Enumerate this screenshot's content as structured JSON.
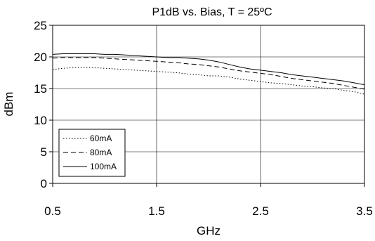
{
  "chart_data": {
    "type": "line",
    "title": "P1dB vs. Bias, T = 25ºC",
    "xlabel": "GHz",
    "ylabel": "dBm",
    "xlim": [
      0.5,
      3.5
    ],
    "ylim": [
      0,
      25
    ],
    "xticks": [
      0.5,
      1.5,
      2.5,
      3.5
    ],
    "yticks": [
      0,
      5,
      10,
      15,
      20,
      25
    ],
    "x_tick_labels": [
      "0.5",
      "1.5",
      "2.5",
      "3.5"
    ],
    "y_tick_labels": [
      "0",
      "5",
      "10",
      "15",
      "20",
      "25"
    ],
    "grid": true,
    "legend_position": "bottom-left",
    "series": [
      {
        "name": "60mA",
        "line_style": "dotted",
        "color": "#000000",
        "x": [
          0.5,
          0.6,
          0.7,
          0.8,
          0.9,
          1.0,
          1.1,
          1.2,
          1.3,
          1.4,
          1.5,
          1.6,
          1.7,
          1.8,
          1.9,
          2.0,
          2.1,
          2.2,
          2.3,
          2.4,
          2.5,
          2.6,
          2.7,
          2.8,
          2.9,
          3.0,
          3.1,
          3.2,
          3.3,
          3.4,
          3.5
        ],
        "y": [
          18.0,
          18.2,
          18.3,
          18.3,
          18.3,
          18.2,
          18.1,
          18.0,
          17.9,
          17.8,
          17.7,
          17.6,
          17.5,
          17.3,
          17.2,
          17.0,
          17.0,
          16.8,
          16.5,
          16.3,
          16.1,
          15.9,
          15.8,
          15.6,
          15.4,
          15.3,
          15.1,
          15.0,
          14.7,
          14.5,
          14.1
        ]
      },
      {
        "name": "80mA",
        "line_style": "dashed",
        "color": "#000000",
        "x": [
          0.5,
          0.6,
          0.7,
          0.8,
          0.9,
          1.0,
          1.1,
          1.2,
          1.3,
          1.4,
          1.5,
          1.6,
          1.7,
          1.8,
          1.9,
          2.0,
          2.1,
          2.2,
          2.3,
          2.4,
          2.5,
          2.6,
          2.7,
          2.8,
          2.9,
          3.0,
          3.1,
          3.2,
          3.3,
          3.4,
          3.5
        ],
        "y": [
          19.8,
          19.9,
          19.9,
          19.9,
          19.9,
          19.8,
          19.7,
          19.6,
          19.5,
          19.4,
          19.3,
          19.2,
          19.1,
          18.9,
          18.8,
          18.6,
          18.4,
          18.1,
          17.8,
          17.6,
          17.4,
          17.2,
          16.9,
          16.6,
          16.4,
          16.2,
          16.0,
          15.8,
          15.5,
          15.2,
          14.9
        ]
      },
      {
        "name": "100mA",
        "line_style": "solid",
        "color": "#000000",
        "x": [
          0.5,
          0.6,
          0.7,
          0.8,
          0.9,
          1.0,
          1.1,
          1.2,
          1.3,
          1.4,
          1.5,
          1.6,
          1.7,
          1.8,
          1.9,
          2.0,
          2.1,
          2.2,
          2.3,
          2.4,
          2.5,
          2.6,
          2.7,
          2.8,
          2.9,
          3.0,
          3.1,
          3.2,
          3.3,
          3.4,
          3.5
        ],
        "y": [
          20.4,
          20.5,
          20.5,
          20.5,
          20.5,
          20.4,
          20.4,
          20.3,
          20.2,
          20.1,
          20.0,
          19.9,
          19.9,
          19.8,
          19.7,
          19.5,
          19.2,
          18.8,
          18.4,
          18.1,
          17.9,
          17.7,
          17.5,
          17.2,
          17.0,
          16.8,
          16.6,
          16.4,
          16.2,
          15.9,
          15.6
        ]
      }
    ]
  }
}
